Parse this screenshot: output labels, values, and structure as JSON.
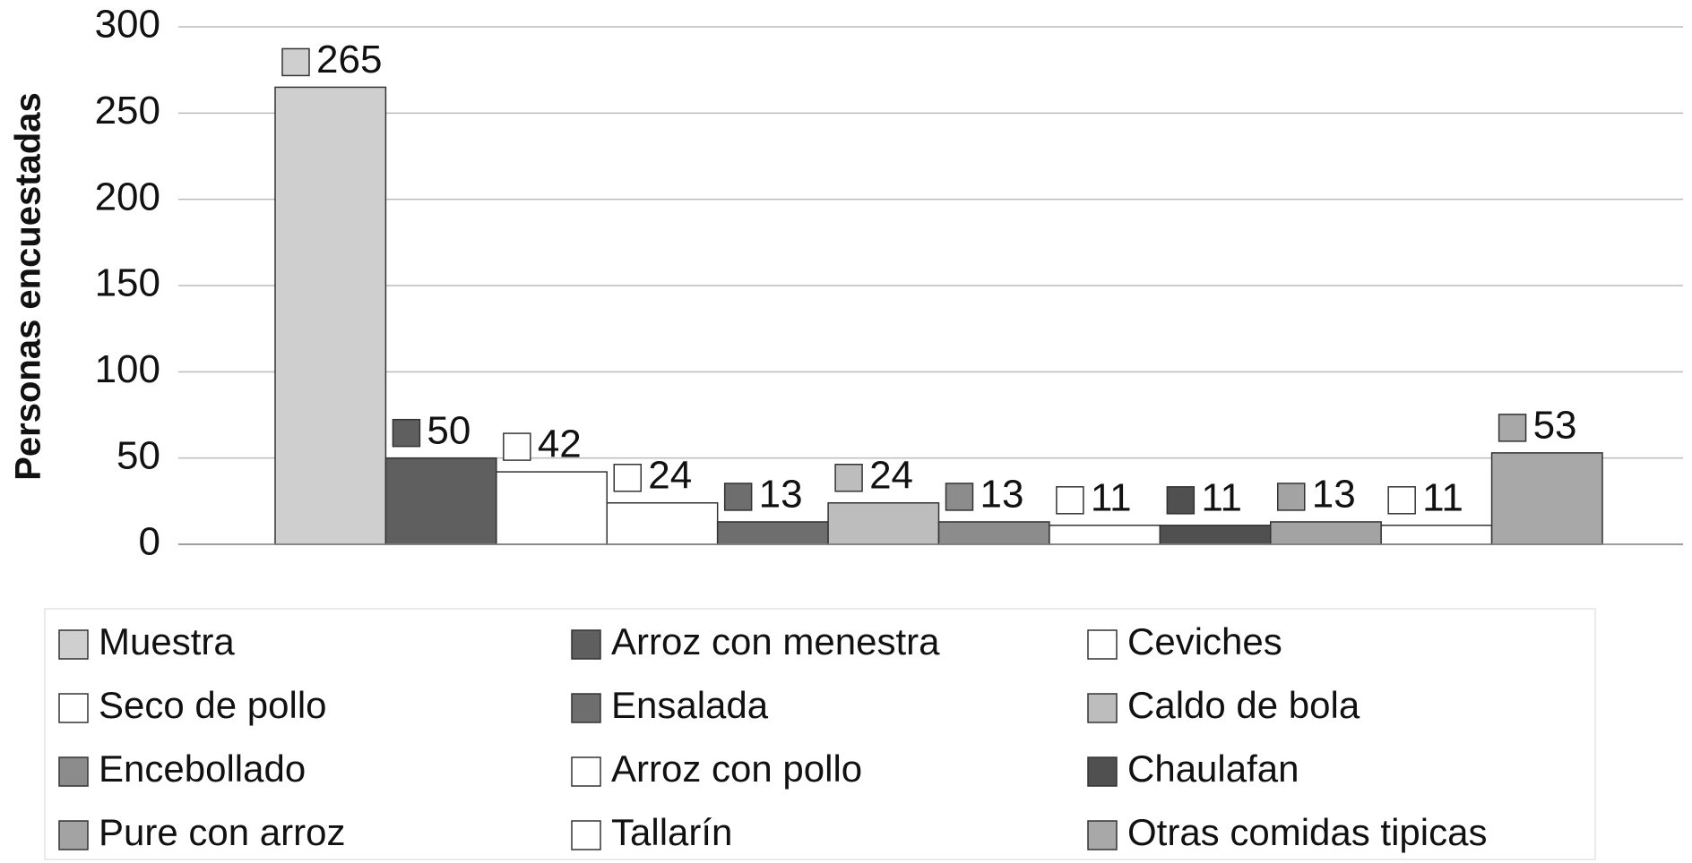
{
  "chart_data": {
    "type": "bar",
    "ylabel": "Personas encuestadas",
    "series": [
      {
        "name": "Muestra",
        "color": "#cfcfcf",
        "values": [
          265
        ]
      },
      {
        "name": "Arroz con menestra",
        "color": "#5f5f5f",
        "values": [
          50
        ]
      },
      {
        "name": "Ceviches",
        "color": "#ffffff",
        "values": [
          42
        ]
      },
      {
        "name": "Seco de pollo",
        "color": "#ffffff",
        "values": [
          24
        ]
      },
      {
        "name": "Ensalada",
        "color": "#6e6e6e",
        "values": [
          13
        ]
      },
      {
        "name": "Caldo de bola",
        "color": "#bdbdbd",
        "values": [
          24
        ]
      },
      {
        "name": "Encebollado",
        "color": "#8c8c8c",
        "values": [
          13
        ]
      },
      {
        "name": "Arroz con pollo",
        "color": "#ffffff",
        "values": [
          11
        ]
      },
      {
        "name": "Chaulafan",
        "color": "#505050",
        "values": [
          11
        ]
      },
      {
        "name": "Pure con arroz",
        "color": "#a3a3a3",
        "values": [
          13
        ]
      },
      {
        "name": "Tallarín",
        "color": "#ffffff",
        "values": [
          11
        ]
      },
      {
        "name": "Otras comidas tipicas",
        "color": "#a8a8a8",
        "values": [
          53
        ]
      }
    ],
    "ylim": [
      0,
      300
    ],
    "yticks": [
      0,
      50,
      100,
      150,
      200,
      250,
      300
    ],
    "grid": true,
    "legend": "bottom"
  }
}
